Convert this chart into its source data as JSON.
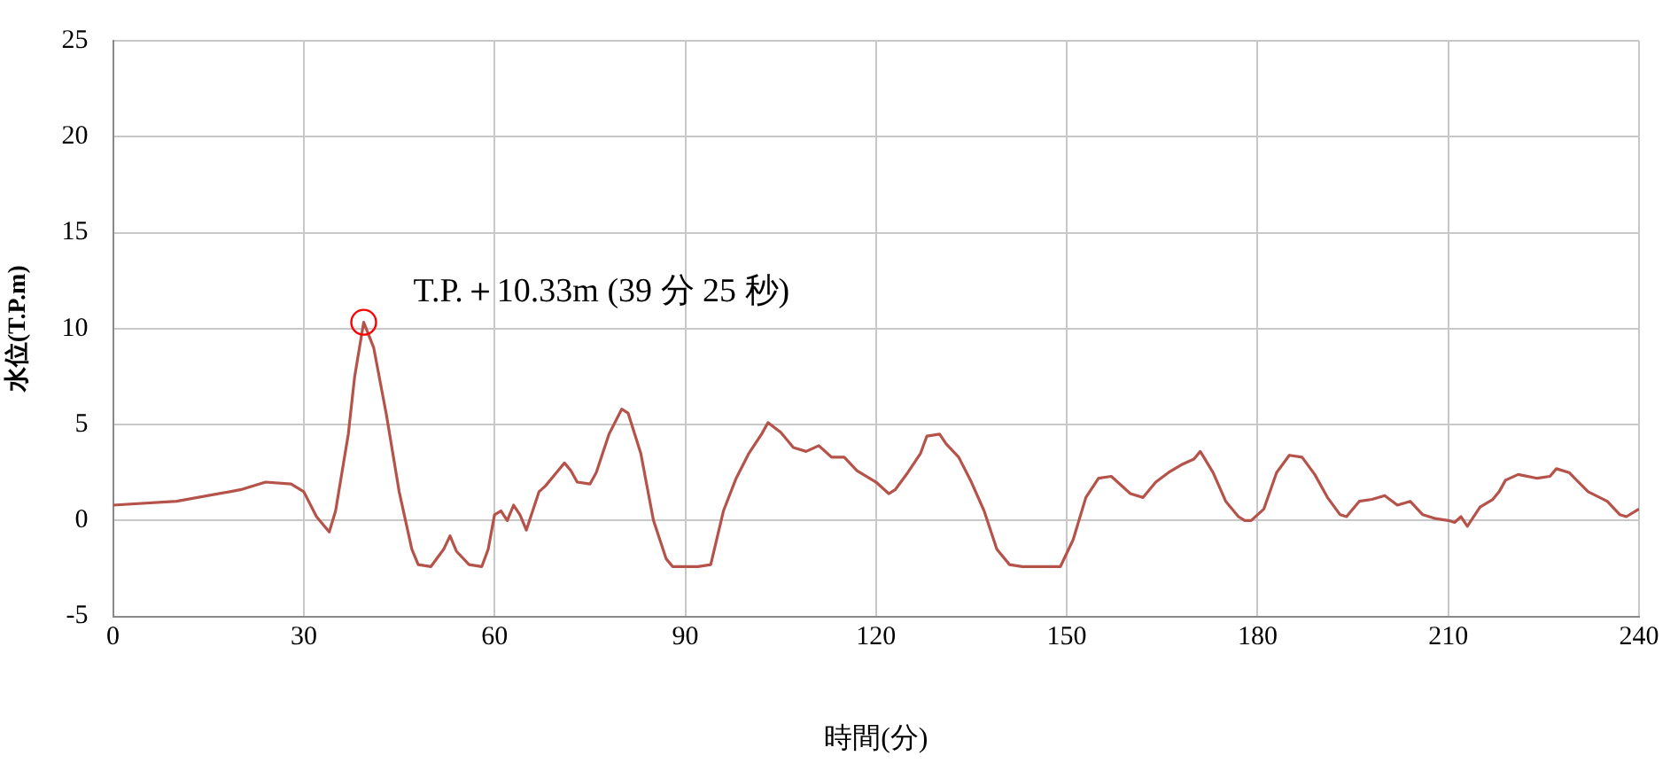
{
  "chart_data": {
    "type": "line",
    "xlabel": "時間(分)",
    "ylabel": "水位(T.P.m)",
    "series": [
      {
        "color": "#b5524a",
        "x": [
          0,
          10,
          20,
          24,
          28,
          30,
          32,
          34,
          35,
          36,
          37,
          38,
          39.42,
          41,
          43,
          45,
          47,
          48,
          50,
          52,
          53,
          54,
          56,
          58,
          59,
          60,
          61,
          62,
          63,
          64,
          65,
          66,
          67,
          68,
          70,
          71,
          72,
          73,
          75,
          76,
          78,
          80,
          81,
          83,
          85,
          87,
          88,
          92,
          94,
          96,
          98,
          100,
          102,
          103,
          105,
          107,
          109,
          111,
          113,
          115,
          117,
          120,
          122,
          123,
          125,
          127,
          128,
          130,
          131,
          133,
          135,
          137,
          139,
          141,
          143,
          149,
          151,
          153,
          155,
          157,
          158,
          160,
          162,
          164,
          166,
          168,
          170,
          171,
          173,
          175,
          177,
          178,
          179,
          181,
          183,
          185,
          187,
          189,
          191,
          193,
          194,
          196,
          198,
          200,
          202,
          204,
          206,
          208,
          210,
          211,
          212,
          213,
          215,
          217,
          218,
          219,
          221,
          224,
          226,
          227,
          229,
          232,
          235,
          237,
          238,
          240
        ],
        "values": [
          0.8,
          1.0,
          1.6,
          2.0,
          1.9,
          1.5,
          0.2,
          -0.6,
          0.5,
          2.5,
          4.5,
          7.5,
          10.33,
          9,
          5.5,
          1.5,
          -1.5,
          -2.3,
          -2.4,
          -1.5,
          -0.8,
          -1.6,
          -2.3,
          -2.4,
          -1.5,
          0.3,
          0.5,
          0,
          0.8,
          0.3,
          -0.5,
          0.5,
          1.5,
          1.8,
          2.6,
          3.0,
          2.6,
          2.0,
          1.9,
          2.5,
          4.5,
          5.8,
          5.6,
          3.5,
          0,
          -2.0,
          -2.4,
          -2.4,
          -2.3,
          0.5,
          2.2,
          3.5,
          4.5,
          5.1,
          4.6,
          3.8,
          3.6,
          3.9,
          3.3,
          3.3,
          2.6,
          2.0,
          1.4,
          1.6,
          2.5,
          3.5,
          4.4,
          4.5,
          4.0,
          3.3,
          2.0,
          0.5,
          -1.5,
          -2.3,
          -2.4,
          -2.4,
          -1.0,
          1.2,
          2.2,
          2.3,
          2.0,
          1.4,
          1.2,
          2.0,
          2.5,
          2.9,
          3.2,
          3.6,
          2.5,
          1.0,
          0.2,
          0,
          0,
          0.6,
          2.5,
          3.4,
          3.3,
          2.4,
          1.2,
          0.3,
          0.2,
          1.0,
          1.1,
          1.3,
          0.8,
          1.0,
          0.3,
          0.1,
          0,
          -0.1,
          0.2,
          -0.3,
          0.7,
          1.1,
          1.5,
          2.1,
          2.4,
          2.2,
          2.3,
          2.7,
          2.5,
          1.5,
          1.0,
          0.3,
          0.2,
          0.6
        ]
      }
    ],
    "annotations": [
      {
        "text": "T.P.＋10.33m (39 分 25 秒)",
        "x": 39.42,
        "y": 10.33
      }
    ],
    "xlim": [
      0,
      240
    ],
    "xticks": [
      0,
      30,
      60,
      90,
      120,
      150,
      180,
      210,
      240
    ],
    "ylim": [
      -5,
      25
    ],
    "yticks": [
      -5,
      0,
      5,
      10,
      15,
      20,
      25
    ],
    "grid": true,
    "legend": false,
    "marker": "none",
    "line_style": "solid"
  }
}
